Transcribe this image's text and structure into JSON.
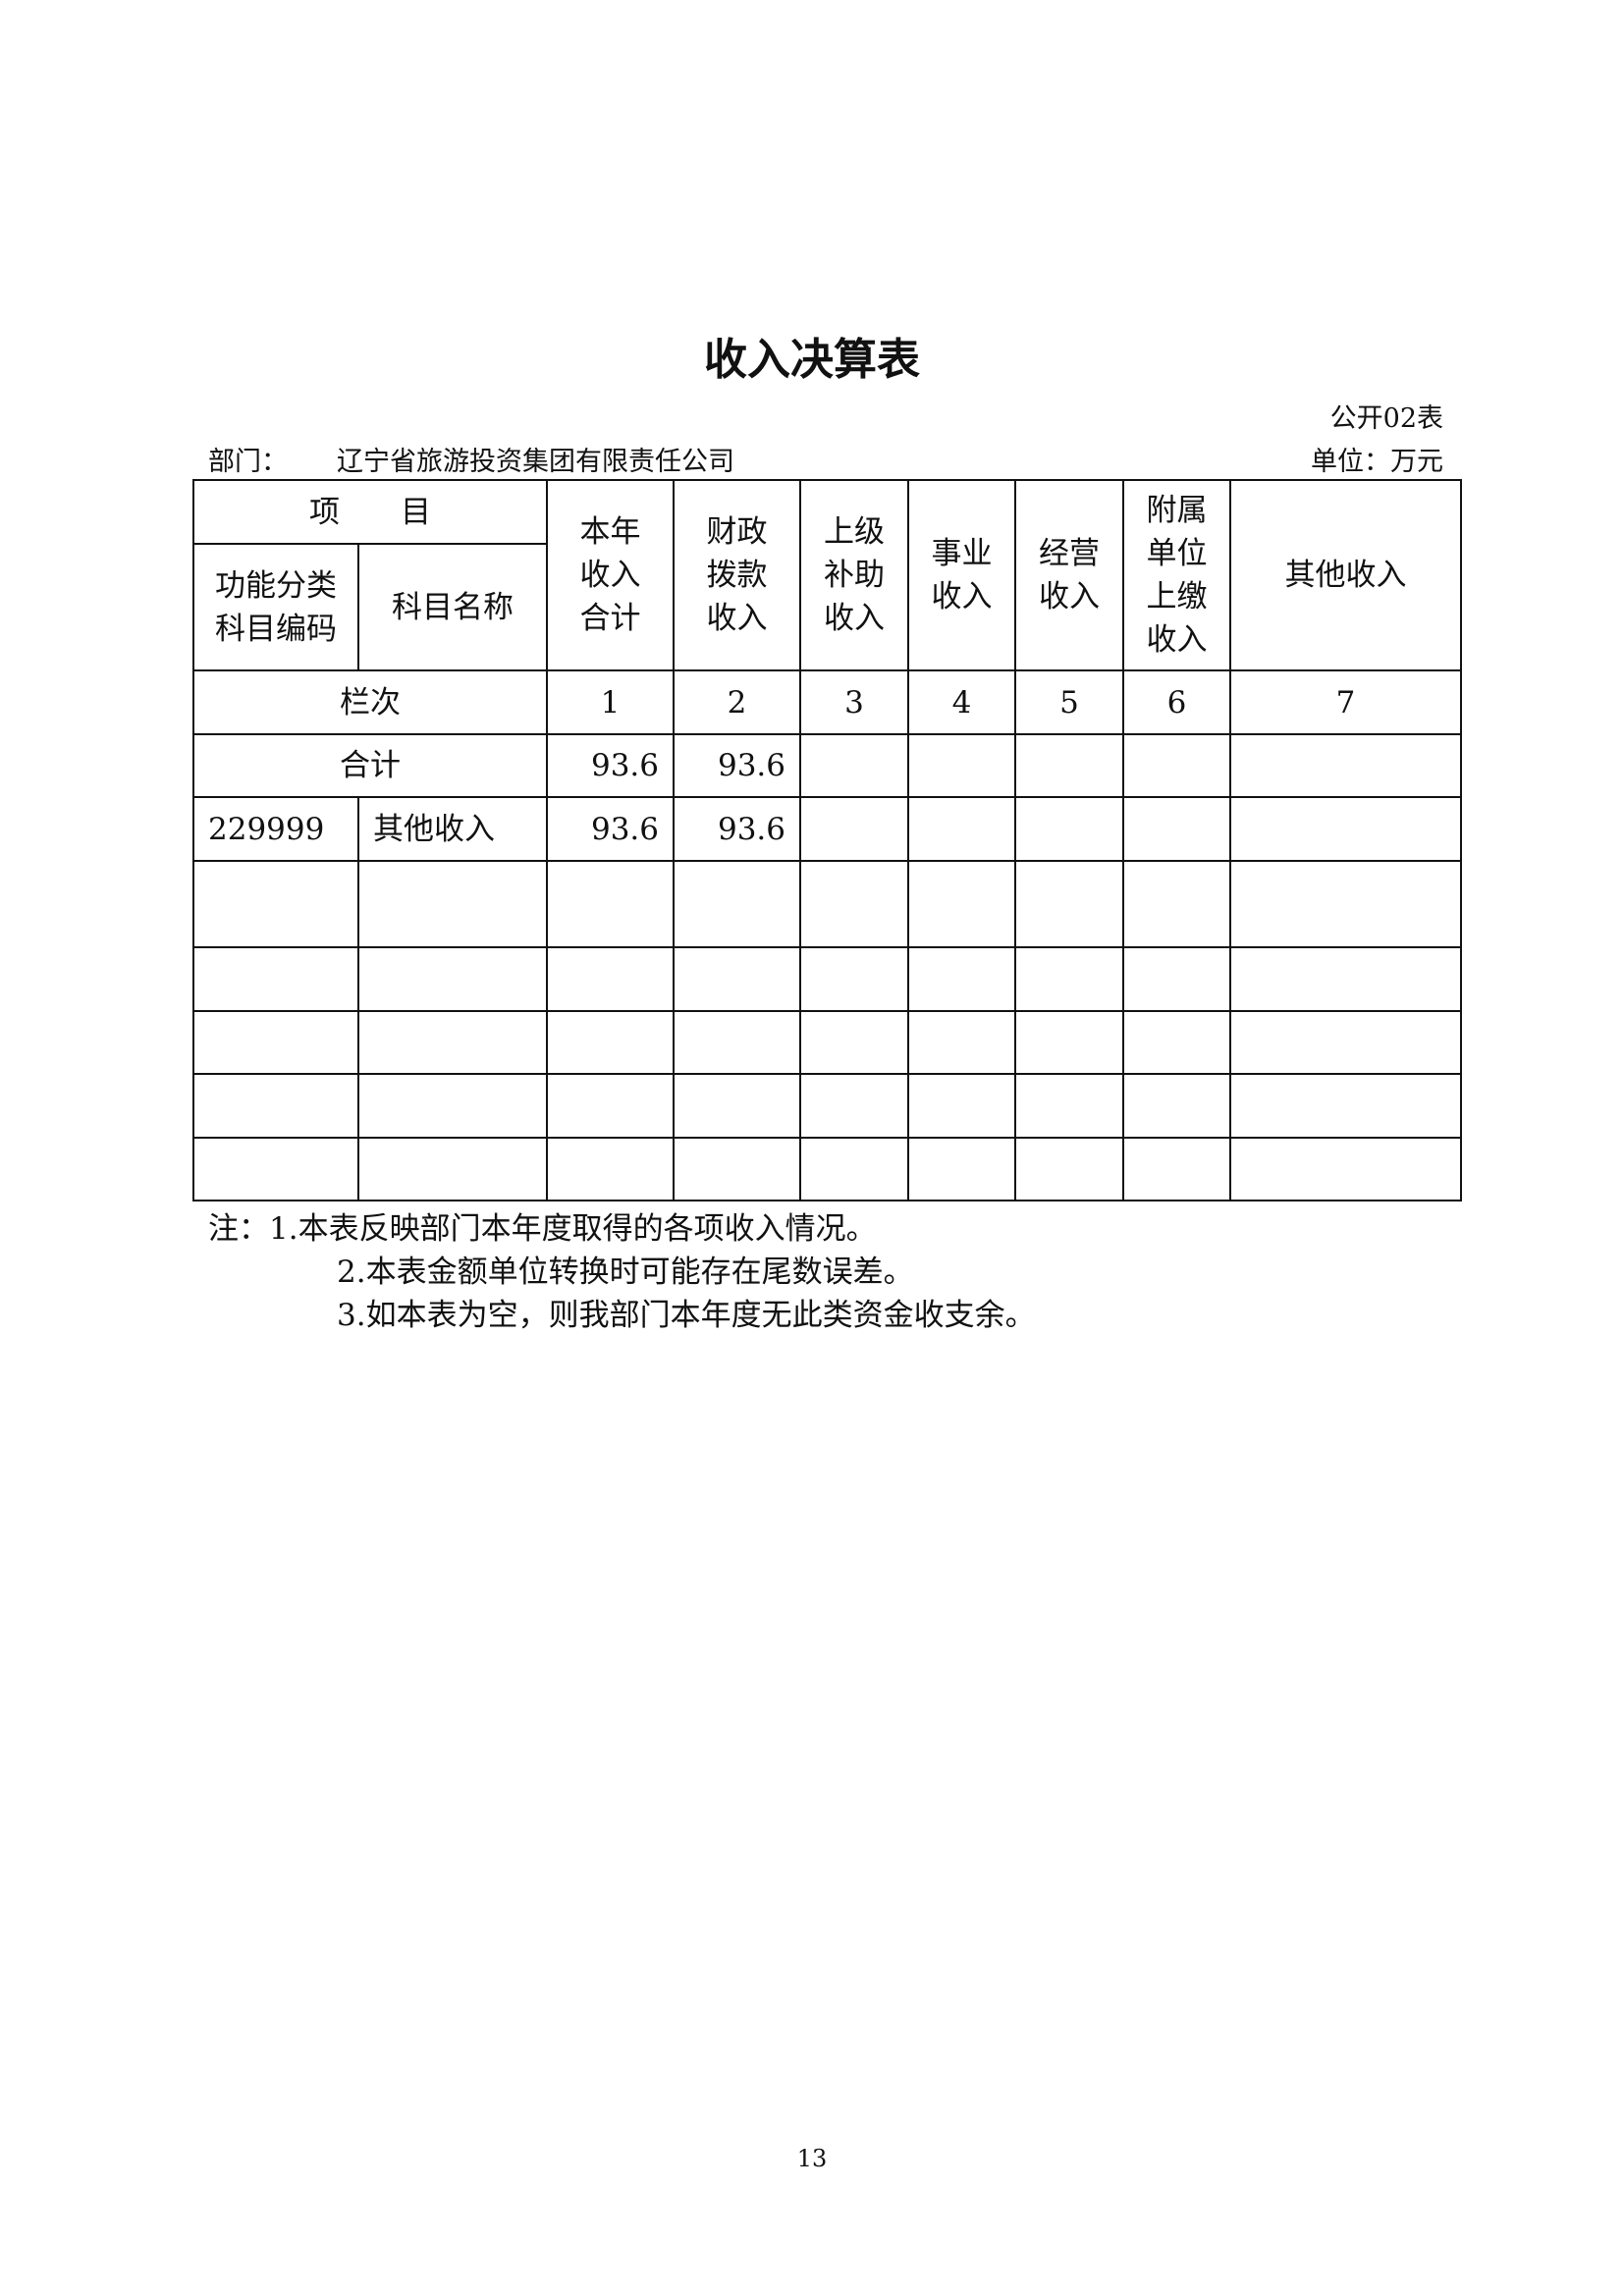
{
  "title": "收入决算表",
  "form_code": "公开02表",
  "department_label": "部门：",
  "department": "辽宁省旅游投资集团有限责任公司",
  "unit": "单位：万元",
  "table": {
    "header_item": "项　　目",
    "header_code": "功能分类科目编码",
    "header_name": "科目名称",
    "columns": [
      "本年收入合计",
      "财政拨款收入",
      "上级补助收入",
      "事业收入",
      "经营收入",
      "附属单位上缴收入",
      "其他收入"
    ],
    "column_numbers_label": "栏次",
    "column_numbers": [
      "1",
      "2",
      "3",
      "4",
      "5",
      "6",
      "7"
    ],
    "total_label": "合计",
    "total_values": [
      "93.6",
      "93.6",
      "",
      "",
      "",
      "",
      ""
    ],
    "rows": [
      {
        "code": "229999",
        "name": "其他收入",
        "values": [
          "93.6",
          "93.6",
          "",
          "",
          "",
          "",
          ""
        ]
      }
    ]
  },
  "notes": [
    "注：1.本表反映部门本年度取得的各项收入情况。",
    "2.本表金额单位转换时可能存在尾数误差。",
    "3.如本表为空，则我部门本年度无此类资金收支余。"
  ],
  "page_number": "13"
}
